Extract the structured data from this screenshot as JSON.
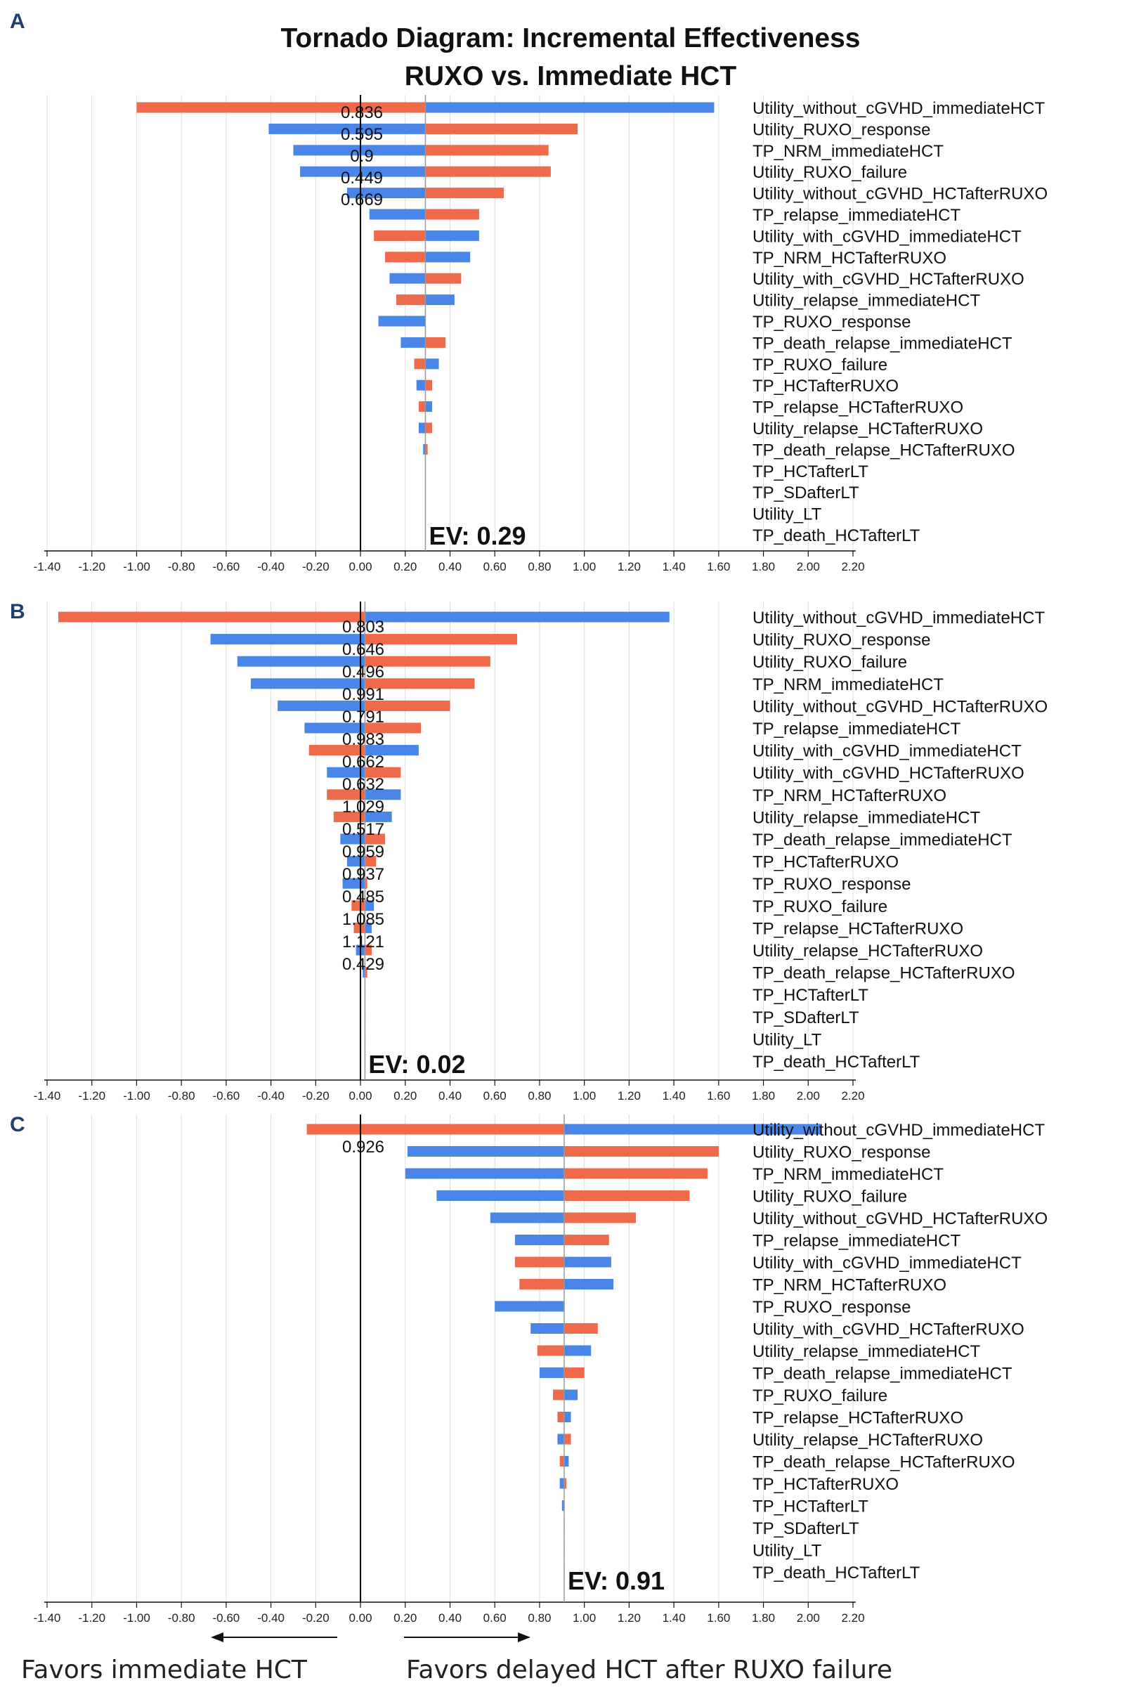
{
  "title_line1": "Tornado Diagram: Incremental Effectiveness",
  "title_line2": "RUXO vs. Immediate HCT",
  "bottom": {
    "favors_left": "Favors immediate HCT",
    "favors_right": "Favors delayed HCT after RUXO failure"
  },
  "colors": {
    "orange": "#ee6a4a",
    "blue": "#4a86e8",
    "zero_line": "#000000",
    "ev_line": "#999999",
    "grid": "#dddddd"
  },
  "chart_data": [
    {
      "type": "tornado",
      "panel": "A",
      "xlim": [
        -1.4,
        2.2
      ],
      "ticks": [
        "-1.40",
        "-1.20",
        "-1.00",
        "-0.80",
        "-0.60",
        "-0.40",
        "-0.20",
        "0.00",
        "0.20",
        "0.40",
        "0.60",
        "0.80",
        "1.00",
        "1.20",
        "1.40",
        "1.60",
        "1.80",
        "2.00",
        "2.20"
      ],
      "ev": 0.29,
      "ev_label": "EV: 0.29",
      "value_labels": [
        "0.836",
        "0.595",
        "0.9",
        "0.449",
        "0.669"
      ],
      "params": [
        {
          "name": "Utility_without_cGVHD_immediateHCT",
          "orange": -1.0,
          "blue": 1.58
        },
        {
          "name": "Utility_RUXO_response",
          "orange": 0.97,
          "blue": -0.41
        },
        {
          "name": "TP_NRM_immediateHCT",
          "orange": 0.84,
          "blue": -0.3
        },
        {
          "name": "Utility_RUXO_failure",
          "orange": 0.85,
          "blue": -0.27
        },
        {
          "name": "Utility_without_cGVHD_HCTafterRUXO",
          "orange": 0.64,
          "blue": -0.06
        },
        {
          "name": "TP_relapse_immediateHCT",
          "orange": 0.53,
          "blue": 0.04
        },
        {
          "name": "Utility_with_cGVHD_immediateHCT",
          "orange": 0.06,
          "blue": 0.53
        },
        {
          "name": "TP_NRM_HCTafterRUXO",
          "orange": 0.11,
          "blue": 0.49
        },
        {
          "name": "Utility_with_cGVHD_HCTafterRUXO",
          "orange": 0.45,
          "blue": 0.13
        },
        {
          "name": "Utility_relapse_immediateHCT",
          "orange": 0.16,
          "blue": 0.42
        },
        {
          "name": "TP_RUXO_response",
          "orange": 0.29,
          "blue": 0.08
        },
        {
          "name": "TP_death_relapse_immediateHCT",
          "orange": 0.38,
          "blue": 0.18
        },
        {
          "name": "TP_RUXO_failure",
          "orange": 0.24,
          "blue": 0.35
        },
        {
          "name": "TP_HCTafterRUXO",
          "orange": 0.32,
          "blue": 0.25
        },
        {
          "name": "TP_relapse_HCTafterRUXO",
          "orange": 0.26,
          "blue": 0.32
        },
        {
          "name": "Utility_relapse_HCTafterRUXO",
          "orange": 0.32,
          "blue": 0.26
        },
        {
          "name": "TP_death_relapse_HCTafterRUXO",
          "orange": 0.3,
          "blue": 0.28
        },
        {
          "name": "TP_HCTafterLT",
          "orange": 0.29,
          "blue": 0.29
        },
        {
          "name": "TP_SDafterLT",
          "orange": 0.29,
          "blue": 0.29
        },
        {
          "name": "Utility_LT",
          "orange": 0.29,
          "blue": 0.29
        },
        {
          "name": "TP_death_HCTafterLT",
          "orange": 0.29,
          "blue": 0.29
        }
      ]
    },
    {
      "type": "tornado",
      "panel": "B",
      "xlim": [
        -1.4,
        2.2
      ],
      "ticks": [
        "-1.40",
        "-1.20",
        "-1.00",
        "-0.80",
        "-0.60",
        "-0.40",
        "-0.20",
        "0.00",
        "0.20",
        "0.40",
        "0.60",
        "0.80",
        "1.00",
        "1.20",
        "1.40",
        "1.60",
        "1.80",
        "2.00",
        "2.20"
      ],
      "ev": 0.02,
      "ev_label": "EV: 0.02",
      "value_labels": [
        "0.803",
        "0.646",
        "0.496",
        "0.991",
        "0.791",
        "0.983",
        "0.662",
        "0.632",
        "1.029",
        "0.517",
        "0.959",
        "0.937",
        "0.485",
        "1.085",
        "1.121",
        "0.429"
      ],
      "params": [
        {
          "name": "Utility_without_cGVHD_immediateHCT",
          "orange": -1.35,
          "blue": 1.38
        },
        {
          "name": "Utility_RUXO_response",
          "orange": 0.7,
          "blue": -0.67
        },
        {
          "name": "Utility_RUXO_failure",
          "orange": 0.58,
          "blue": -0.55
        },
        {
          "name": "TP_NRM_immediateHCT",
          "orange": 0.51,
          "blue": -0.49
        },
        {
          "name": "Utility_without_cGVHD_HCTafterRUXO",
          "orange": 0.4,
          "blue": -0.37
        },
        {
          "name": "TP_relapse_immediateHCT",
          "orange": 0.27,
          "blue": -0.25
        },
        {
          "name": "Utility_with_cGVHD_immediateHCT",
          "orange": -0.23,
          "blue": 0.26
        },
        {
          "name": "Utility_with_cGVHD_HCTafterRUXO",
          "orange": 0.18,
          "blue": -0.15
        },
        {
          "name": "TP_NRM_HCTafterRUXO",
          "orange": -0.15,
          "blue": 0.18
        },
        {
          "name": "Utility_relapse_immediateHCT",
          "orange": -0.12,
          "blue": 0.14
        },
        {
          "name": "TP_death_relapse_immediateHCT",
          "orange": 0.11,
          "blue": -0.09
        },
        {
          "name": "TP_HCTafterRUXO",
          "orange": 0.07,
          "blue": -0.06
        },
        {
          "name": "TP_RUXO_response",
          "orange": 0.03,
          "blue": -0.08
        },
        {
          "name": "TP_RUXO_failure",
          "orange": -0.04,
          "blue": 0.06
        },
        {
          "name": "TP_relapse_HCTafterRUXO",
          "orange": -0.03,
          "blue": 0.05
        },
        {
          "name": "Utility_relapse_HCTafterRUXO",
          "orange": 0.05,
          "blue": -0.02
        },
        {
          "name": "TP_death_relapse_HCTafterRUXO",
          "orange": 0.03,
          "blue": 0.01
        },
        {
          "name": "TP_HCTafterLT",
          "orange": 0.02,
          "blue": 0.02
        },
        {
          "name": "TP_SDafterLT",
          "orange": 0.02,
          "blue": 0.02
        },
        {
          "name": "Utility_LT",
          "orange": 0.02,
          "blue": 0.02
        },
        {
          "name": "TP_death_HCTafterLT",
          "orange": 0.02,
          "blue": 0.02
        }
      ]
    },
    {
      "type": "tornado",
      "panel": "C",
      "xlim": [
        -1.4,
        2.2
      ],
      "ticks": [
        "-1.40",
        "-1.20",
        "-1.00",
        "-0.80",
        "-0.60",
        "-0.40",
        "-0.20",
        "0.00",
        "0.20",
        "0.40",
        "0.60",
        "0.80",
        "1.00",
        "1.20",
        "1.40",
        "1.60",
        "1.80",
        "2.00",
        "2.20"
      ],
      "ev": 0.91,
      "ev_label": "EV: 0.91",
      "value_labels": [
        "0.926"
      ],
      "params": [
        {
          "name": "Utility_without_cGVHD_immediateHCT",
          "orange": -0.24,
          "blue": 2.06
        },
        {
          "name": "Utility_RUXO_response",
          "orange": 1.6,
          "blue": 0.21
        },
        {
          "name": "TP_NRM_immediateHCT",
          "orange": 1.55,
          "blue": 0.2
        },
        {
          "name": "Utility_RUXO_failure",
          "orange": 1.47,
          "blue": 0.34
        },
        {
          "name": "Utility_without_cGVHD_HCTafterRUXO",
          "orange": 1.23,
          "blue": 0.58
        },
        {
          "name": "TP_relapse_immediateHCT",
          "orange": 1.11,
          "blue": 0.69
        },
        {
          "name": "Utility_with_cGVHD_immediateHCT",
          "orange": 0.69,
          "blue": 1.12
        },
        {
          "name": "TP_NRM_HCTafterRUXO",
          "orange": 0.71,
          "blue": 1.13
        },
        {
          "name": "TP_RUXO_response",
          "orange": 0.91,
          "blue": 0.6
        },
        {
          "name": "Utility_with_cGVHD_HCTafterRUXO",
          "orange": 1.06,
          "blue": 0.76
        },
        {
          "name": "Utility_relapse_immediateHCT",
          "orange": 0.79,
          "blue": 1.03
        },
        {
          "name": "TP_death_relapse_immediateHCT",
          "orange": 1.0,
          "blue": 0.8
        },
        {
          "name": "TP_RUXO_failure",
          "orange": 0.86,
          "blue": 0.97
        },
        {
          "name": "TP_relapse_HCTafterRUXO",
          "orange": 0.88,
          "blue": 0.94
        },
        {
          "name": "Utility_relapse_HCTafterRUXO",
          "orange": 0.94,
          "blue": 0.88
        },
        {
          "name": "TP_death_relapse_HCTafterRUXO",
          "orange": 0.89,
          "blue": 0.93
        },
        {
          "name": "TP_HCTafterRUXO",
          "orange": 0.92,
          "blue": 0.89
        },
        {
          "name": "TP_HCTafterLT",
          "orange": 0.91,
          "blue": 0.9
        },
        {
          "name": "TP_SDafterLT",
          "orange": 0.91,
          "blue": 0.91
        },
        {
          "name": "Utility_LT",
          "orange": 0.91,
          "blue": 0.91
        },
        {
          "name": "TP_death_HCTafterLT",
          "orange": 0.91,
          "blue": 0.91
        }
      ]
    }
  ]
}
